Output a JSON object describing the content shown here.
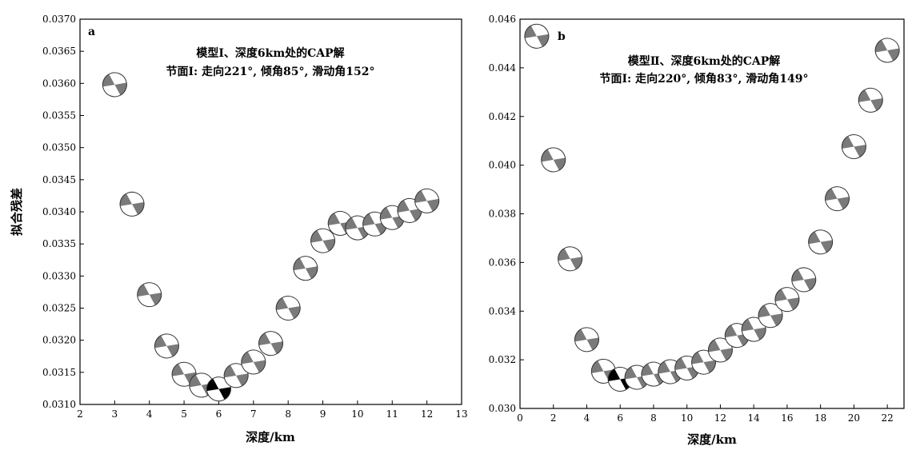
{
  "chart_data": [
    {
      "type": "scatter",
      "panel_label": "a",
      "annotation": [
        "模型Ⅰ、深度6km处的CAP解",
        "节面Ⅰ: 走向221°, 倾角85°, 滑动角152°"
      ],
      "xlabel": "深度/km",
      "ylabel": "拟合残差",
      "xlim": [
        2,
        13
      ],
      "ylim": [
        0.031,
        0.037
      ],
      "x_ticks": [
        "2",
        "3",
        "4",
        "5",
        "6",
        "7",
        "8",
        "9",
        "10",
        "11",
        "12",
        "13"
      ],
      "y_ticks": [
        "0.0310",
        "0.0315",
        "0.0320",
        "0.0325",
        "0.0330",
        "0.0335",
        "0.0340",
        "0.0345",
        "0.0350",
        "0.0355",
        "0.0360",
        "0.0365",
        "0.0370"
      ],
      "best_depth": 6,
      "points": [
        {
          "x": 3,
          "y": 0.03598
        },
        {
          "x": 3.5,
          "y": 0.03412
        },
        {
          "x": 4,
          "y": 0.03271
        },
        {
          "x": 4.5,
          "y": 0.03191
        },
        {
          "x": 5,
          "y": 0.03147
        },
        {
          "x": 5.5,
          "y": 0.0313
        },
        {
          "x": 6,
          "y": 0.03124
        },
        {
          "x": 6.5,
          "y": 0.03145
        },
        {
          "x": 7,
          "y": 0.03166
        },
        {
          "x": 7.5,
          "y": 0.03195
        },
        {
          "x": 8,
          "y": 0.0325
        },
        {
          "x": 8.5,
          "y": 0.03312
        },
        {
          "x": 9,
          "y": 0.03355
        },
        {
          "x": 9.5,
          "y": 0.03382
        },
        {
          "x": 10,
          "y": 0.03375
        },
        {
          "x": 10.5,
          "y": 0.03381
        },
        {
          "x": 11,
          "y": 0.03391
        },
        {
          "x": 11.5,
          "y": 0.03402
        },
        {
          "x": 12,
          "y": 0.03417
        }
      ]
    },
    {
      "type": "scatter",
      "panel_label": "b",
      "annotation": [
        "模型Ⅱ、深度6km处的CAP解",
        "节面Ⅰ: 走向220°, 倾角83°, 滑动角149°"
      ],
      "xlabel": "深度/km",
      "ylabel": "",
      "xlim": [
        0,
        23
      ],
      "ylim": [
        0.03,
        0.046
      ],
      "x_ticks": [
        "0",
        "2",
        "4",
        "6",
        "8",
        "10",
        "12",
        "14",
        "16",
        "18",
        "20",
        "22"
      ],
      "y_ticks": [
        "0.030",
        "0.032",
        "0.034",
        "0.036",
        "0.038",
        "0.040",
        "0.042",
        "0.044",
        "0.046"
      ],
      "best_depth": 6,
      "points": [
        {
          "x": 1,
          "y": 0.0453
        },
        {
          "x": 2,
          "y": 0.04022
        },
        {
          "x": 3,
          "y": 0.03615
        },
        {
          "x": 4,
          "y": 0.03283
        },
        {
          "x": 5,
          "y": 0.03153
        },
        {
          "x": 6,
          "y": 0.0312
        },
        {
          "x": 7,
          "y": 0.03128
        },
        {
          "x": 8,
          "y": 0.03141
        },
        {
          "x": 9,
          "y": 0.03151
        },
        {
          "x": 10,
          "y": 0.03166
        },
        {
          "x": 11,
          "y": 0.0319
        },
        {
          "x": 12,
          "y": 0.0324
        },
        {
          "x": 13,
          "y": 0.033
        },
        {
          "x": 14,
          "y": 0.03325
        },
        {
          "x": 15,
          "y": 0.03382
        },
        {
          "x": 16,
          "y": 0.03448
        },
        {
          "x": 17,
          "y": 0.03529
        },
        {
          "x": 18,
          "y": 0.03684
        },
        {
          "x": 19,
          "y": 0.03862
        },
        {
          "x": 20,
          "y": 0.04076
        },
        {
          "x": 21,
          "y": 0.04267
        },
        {
          "x": 22,
          "y": 0.04472
        }
      ]
    }
  ]
}
